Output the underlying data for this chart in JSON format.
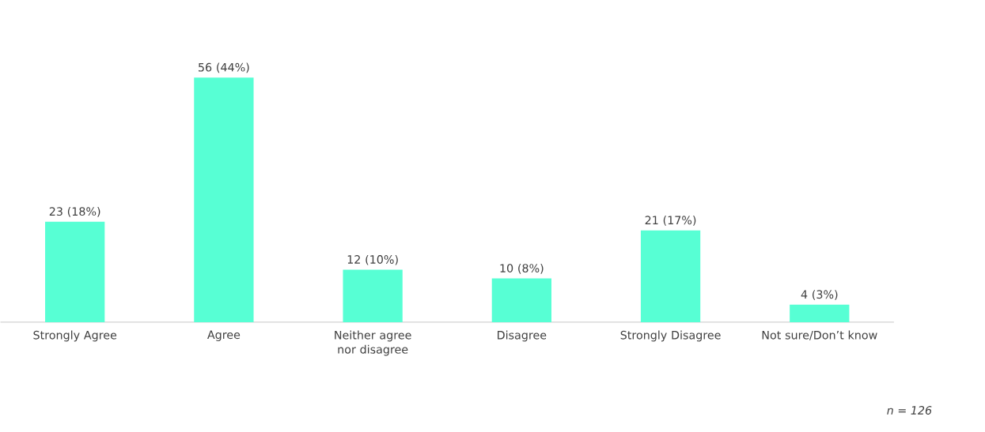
{
  "chart_data": {
    "type": "bar",
    "categories": [
      "Strongly Agree",
      "Agree",
      "Neither agree nor disagree",
      "Disagree",
      "Strongly Disagree",
      "Not sure/Don’t know"
    ],
    "values": [
      23,
      56,
      12,
      10,
      21,
      4
    ],
    "value_labels": [
      "23 (18%)",
      "56 (44%)",
      "12 (10%)",
      "10 (8%)",
      "21 (17%)",
      "4 (3%)"
    ],
    "color": "#57ffd4",
    "annotations": [
      "n = 126"
    ]
  }
}
